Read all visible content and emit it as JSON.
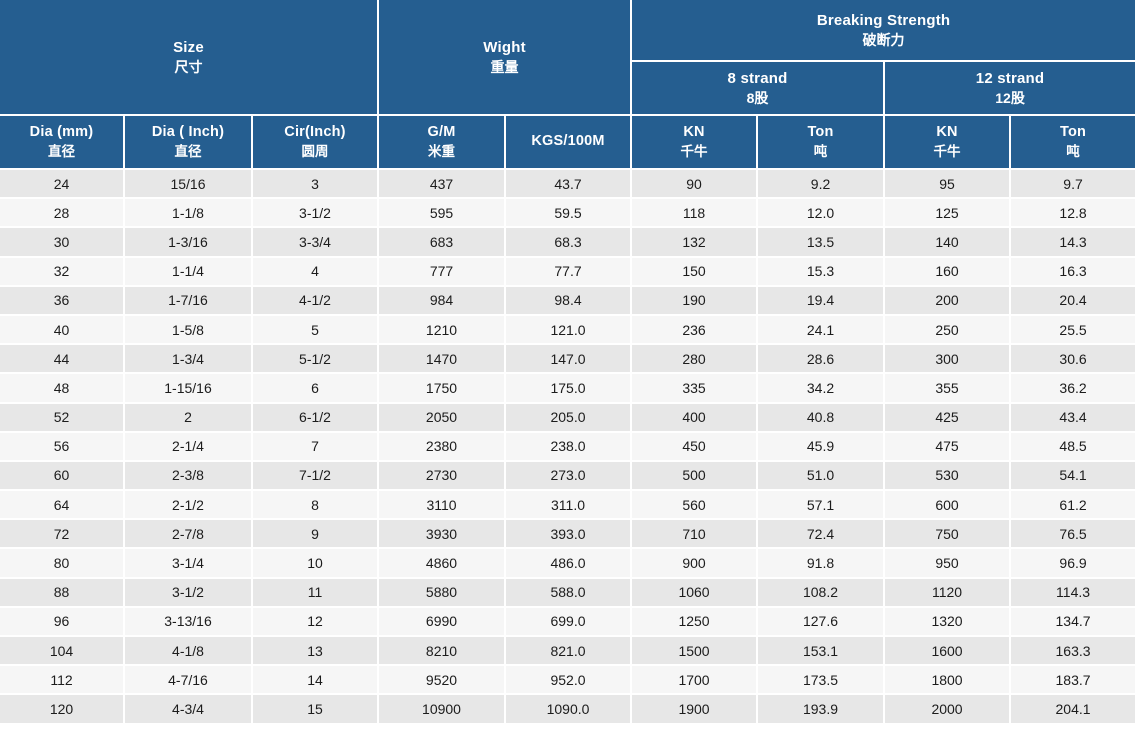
{
  "header": {
    "size_group": {
      "en": "Size",
      "zh": "尺寸"
    },
    "weight_group": {
      "en": "Wight",
      "zh": "重量"
    },
    "breaking_group": {
      "en": "Breaking Strength",
      "zh": "破断力"
    },
    "strand_8": {
      "en": "8 strand",
      "zh": "8股"
    },
    "strand_12": {
      "en": "12 strand",
      "zh": "12股"
    },
    "columns": [
      {
        "en": "Dia (mm)",
        "zh": "直径"
      },
      {
        "en": "Dia ( Inch)",
        "zh": "直径"
      },
      {
        "en": "Cir(Inch)",
        "zh": "圆周"
      },
      {
        "en": "G/M",
        "zh": "米重"
      },
      {
        "en": "KGS/100M",
        "zh": ""
      },
      {
        "en": "KN",
        "zh": "千牛"
      },
      {
        "en": "Ton",
        "zh": "吨"
      },
      {
        "en": "KN",
        "zh": "千牛"
      },
      {
        "en": "Ton",
        "zh": "吨"
      }
    ]
  },
  "highlight_cell": {
    "row_index": 7,
    "col_index": 1
  },
  "colors": {
    "header_bg": "#255E90",
    "row_odd": "#E7E7E7",
    "row_even": "#F6F6F6",
    "highlight": "#FFFFFF",
    "grid": "#FFFFFF",
    "text": "#1C1C1C",
    "header_text": "#FFFFFF"
  },
  "chart_data": {
    "type": "table",
    "title": "",
    "column_groups": [
      {
        "label": "Size 尺寸",
        "span": 3
      },
      {
        "label": "Wight 重量",
        "span": 2
      },
      {
        "label": "Breaking Strength 破断力",
        "span": 4,
        "subgroups": [
          {
            "label": "8 strand 8股",
            "span": 2
          },
          {
            "label": "12 strand 12股",
            "span": 2
          }
        ]
      }
    ],
    "columns": [
      "Dia (mm) 直径",
      "Dia ( Inch) 直径",
      "Cir(Inch) 圆周",
      "G/M 米重",
      "KGS/100M",
      "KN 千牛 (8 strand)",
      "Ton 吨 (8 strand)",
      "KN 千牛 (12 strand)",
      "Ton 吨 (12 strand)"
    ],
    "rows": [
      [
        "24",
        "15/16",
        "3",
        "437",
        "43.7",
        "90",
        "9.2",
        "95",
        "9.7"
      ],
      [
        "28",
        "1-1/8",
        "3-1/2",
        "595",
        "59.5",
        "118",
        "12.0",
        "125",
        "12.8"
      ],
      [
        "30",
        "1-3/16",
        "3-3/4",
        "683",
        "68.3",
        "132",
        "13.5",
        "140",
        "14.3"
      ],
      [
        "32",
        "1-1/4",
        "4",
        "777",
        "77.7",
        "150",
        "15.3",
        "160",
        "16.3"
      ],
      [
        "36",
        "1-7/16",
        "4-1/2",
        "984",
        "98.4",
        "190",
        "19.4",
        "200",
        "20.4"
      ],
      [
        "40",
        "1-5/8",
        "5",
        "1210",
        "121.0",
        "236",
        "24.1",
        "250",
        "25.5"
      ],
      [
        "44",
        "1-3/4",
        "5-1/2",
        "1470",
        "147.0",
        "280",
        "28.6",
        "300",
        "30.6"
      ],
      [
        "48",
        "1-15/16",
        "6",
        "1750",
        "175.0",
        "335",
        "34.2",
        "355",
        "36.2"
      ],
      [
        "52",
        "2",
        "6-1/2",
        "2050",
        "205.0",
        "400",
        "40.8",
        "425",
        "43.4"
      ],
      [
        "56",
        "2-1/4",
        "7",
        "2380",
        "238.0",
        "450",
        "45.9",
        "475",
        "48.5"
      ],
      [
        "60",
        "2-3/8",
        "7-1/2",
        "2730",
        "273.0",
        "500",
        "51.0",
        "530",
        "54.1"
      ],
      [
        "64",
        "2-1/2",
        "8",
        "3110",
        "311.0",
        "560",
        "57.1",
        "600",
        "61.2"
      ],
      [
        "72",
        "2-7/8",
        "9",
        "3930",
        "393.0",
        "710",
        "72.4",
        "750",
        "76.5"
      ],
      [
        "80",
        "3-1/4",
        "10",
        "4860",
        "486.0",
        "900",
        "91.8",
        "950",
        "96.9"
      ],
      [
        "88",
        "3-1/2",
        "11",
        "5880",
        "588.0",
        "1060",
        "108.2",
        "1120",
        "114.3"
      ],
      [
        "96",
        "3-13/16",
        "12",
        "6990",
        "699.0",
        "1250",
        "127.6",
        "1320",
        "134.7"
      ],
      [
        "104",
        "4-1/8",
        "13",
        "8210",
        "821.0",
        "1500",
        "153.1",
        "1600",
        "163.3"
      ],
      [
        "112",
        "4-7/16",
        "14",
        "9520",
        "952.0",
        "1700",
        "173.5",
        "1800",
        "183.7"
      ],
      [
        "120",
        "4-3/4",
        "15",
        "10900",
        "1090.0",
        "1900",
        "193.9",
        "2000",
        "204.1"
      ]
    ]
  }
}
